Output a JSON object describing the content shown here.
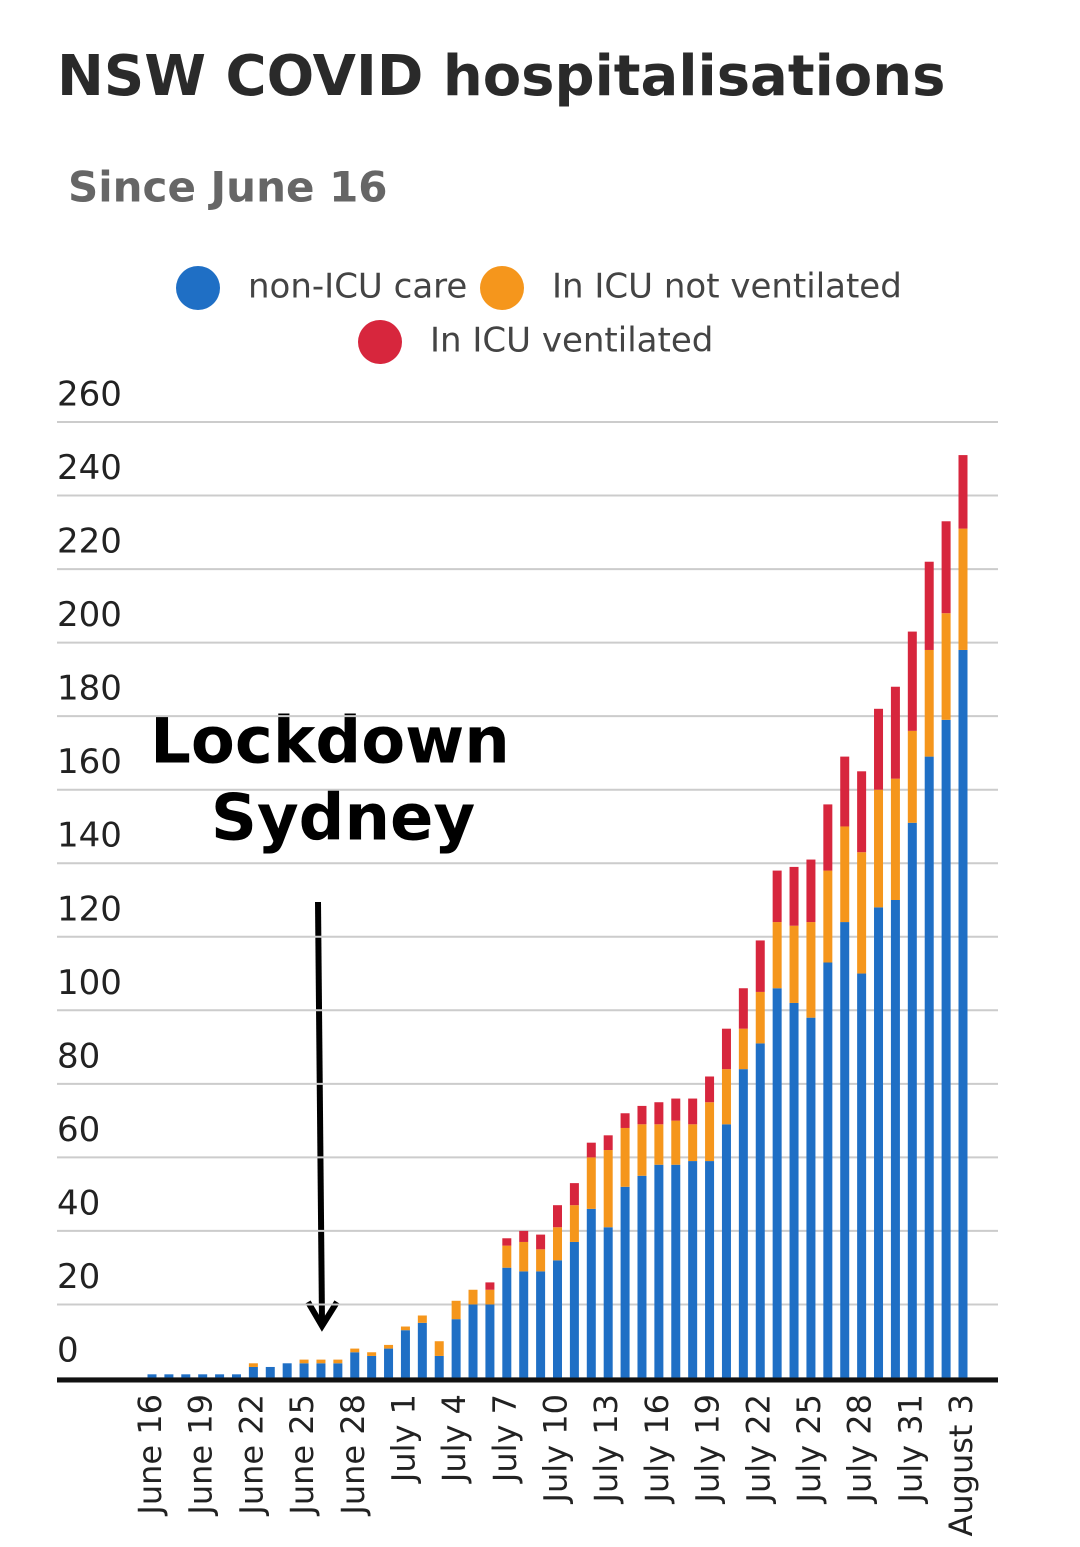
{
  "chart_data": {
    "type": "stacked-bar",
    "title": "NSW COVID hospitalisations",
    "subtitle": "Since June 16",
    "annotation": [
      "Lockdown",
      "Sydney"
    ],
    "categories": [
      "June 16",
      null,
      null,
      "June 19",
      null,
      null,
      "June 22",
      null,
      null,
      "June 25",
      null,
      null,
      "June 28",
      null,
      null,
      "July 1",
      null,
      null,
      "July 4",
      null,
      null,
      "July 7",
      null,
      null,
      "July 10",
      null,
      null,
      "July 13",
      null,
      null,
      "July 16",
      null,
      null,
      "July 19",
      null,
      null,
      "July 22",
      null,
      null,
      "July 25",
      null,
      null,
      "July 28",
      null,
      null,
      "July 31",
      null,
      null,
      "August 3"
    ],
    "series": [
      {
        "name": "non-ICU care",
        "color": "#1f6fc5",
        "values": [
          1,
          1,
          1,
          1,
          1,
          1,
          3,
          3,
          4,
          4,
          4,
          4,
          7,
          6,
          8,
          13,
          15,
          6,
          16,
          20,
          20,
          30,
          29,
          29,
          32,
          37,
          46,
          41,
          52,
          55,
          58,
          58,
          59,
          59,
          69,
          84,
          91,
          106,
          102,
          98,
          113,
          124,
          110,
          128,
          130,
          151,
          169,
          179,
          198
        ]
      },
      {
        "name": "In ICU not ventilated",
        "color": "#f5961c",
        "values": [
          0,
          0,
          0,
          0,
          0,
          0,
          1,
          0,
          0,
          1,
          1,
          1,
          1,
          1,
          1,
          1,
          2,
          4,
          5,
          4,
          4,
          6,
          8,
          6,
          9,
          10,
          14,
          21,
          16,
          14,
          11,
          12,
          10,
          16,
          15,
          11,
          14,
          18,
          21,
          26,
          25,
          26,
          33,
          32,
          33,
          25,
          29,
          29,
          33
        ]
      },
      {
        "name": "In ICU ventilated",
        "color": "#d7263d",
        "values": [
          0,
          0,
          0,
          0,
          0,
          0,
          0,
          0,
          0,
          0,
          0,
          0,
          0,
          0,
          0,
          0,
          0,
          0,
          0,
          0,
          2,
          2,
          3,
          4,
          6,
          6,
          4,
          4,
          4,
          5,
          6,
          6,
          7,
          7,
          11,
          11,
          14,
          14,
          16,
          17,
          18,
          19,
          22,
          22,
          25,
          27,
          24,
          25,
          20
        ]
      }
    ],
    "ylim": [
      0,
      260
    ],
    "yticks": [
      0,
      20,
      40,
      60,
      80,
      100,
      120,
      140,
      160,
      180,
      200,
      220,
      240,
      260
    ],
    "grid": true
  }
}
